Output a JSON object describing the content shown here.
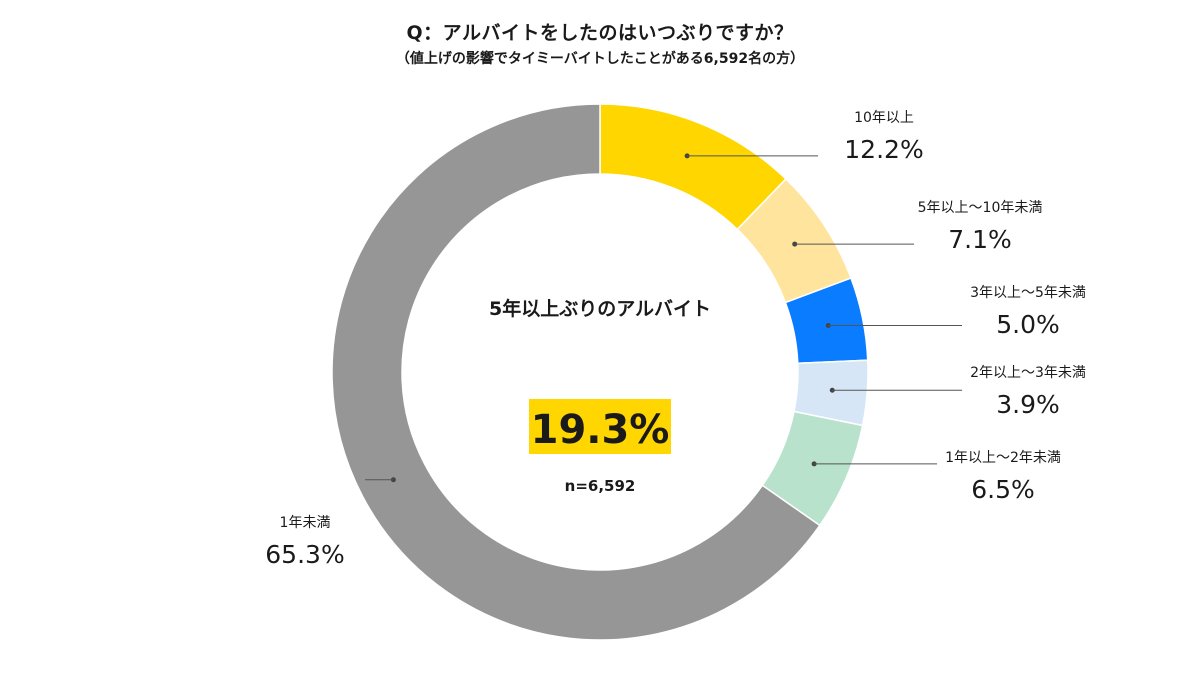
{
  "title": "Q：アルバイトをしたのはいつぶりですか？",
  "subtitle": "（値上げの影響でタイミーバイトしたことがある6,592名の方）",
  "center": {
    "label": "5年以上ぶりのアルバイト",
    "value": "19.3%",
    "n": "n=6,592",
    "highlight_color": "#FFD600"
  },
  "chart_data": {
    "type": "pie",
    "variant": "donut",
    "start": "12 o'clock, clockwise",
    "categories": [
      "10年以上",
      "5年以上～10年未満",
      "3年以上～5年未満",
      "2年以上～3年未満",
      "1年以上～2年未満",
      "1年未満"
    ],
    "values": [
      12.2,
      7.1,
      5.0,
      3.9,
      6.5,
      65.3
    ],
    "labels": [
      "12.2%",
      "7.1%",
      "5.0%",
      "3.9%",
      "6.5%",
      "65.3%"
    ],
    "colors": [
      "#FFD600",
      "#FFE49E",
      "#0A7CFF",
      "#D6E6F7",
      "#B8E2CC",
      "#969696"
    ],
    "label_side": [
      "right",
      "right",
      "right",
      "right",
      "right",
      "left"
    ]
  }
}
